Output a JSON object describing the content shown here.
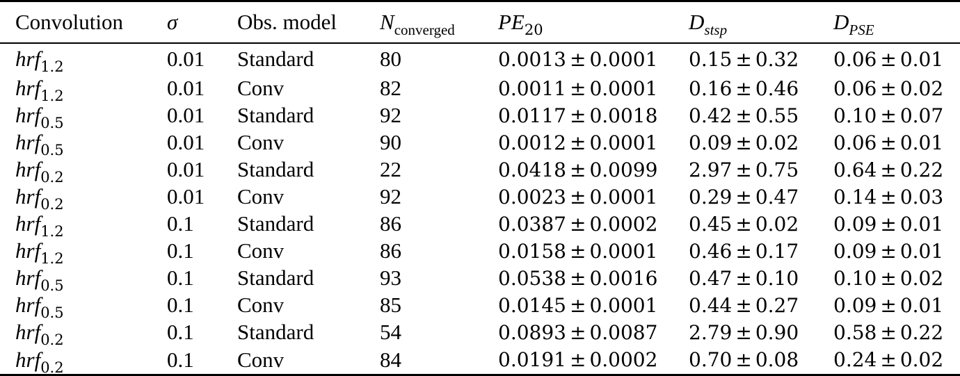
{
  "table": {
    "headers": {
      "convolution": "Convolution",
      "sigma": "σ",
      "obs_model": "Obs. model",
      "n_converged_base": "N",
      "n_converged_sub": "converged",
      "pe_base": "PE",
      "pe_sub": "20",
      "dstsp_base": "D",
      "dstsp_sub": "stsp",
      "dpse_base": "D",
      "dpse_sub": "PSE"
    },
    "pm_symbol": "±",
    "rows": [
      {
        "conv_base": "hrf",
        "conv_sub": "1.2",
        "sigma": "0.01",
        "model": "Standard",
        "n": "80",
        "pe_mean": "0.0013",
        "pe_sd": "0.0001",
        "dstsp_mean": "0.15",
        "dstsp_sd": "0.32",
        "dpse_mean": "0.06",
        "dpse_sd": "0.01"
      },
      {
        "conv_base": "hrf",
        "conv_sub": "1.2",
        "sigma": "0.01",
        "model": "Conv",
        "n": "82",
        "pe_mean": "0.0011",
        "pe_sd": "0.0001",
        "dstsp_mean": "0.16",
        "dstsp_sd": "0.46",
        "dpse_mean": "0.06",
        "dpse_sd": "0.02"
      },
      {
        "conv_base": "hrf",
        "conv_sub": "0.5",
        "sigma": "0.01",
        "model": "Standard",
        "n": "92",
        "pe_mean": "0.0117",
        "pe_sd": "0.0018",
        "dstsp_mean": "0.42",
        "dstsp_sd": "0.55",
        "dpse_mean": "0.10",
        "dpse_sd": "0.07"
      },
      {
        "conv_base": "hrf",
        "conv_sub": "0.5",
        "sigma": "0.01",
        "model": "Conv",
        "n": "90",
        "pe_mean": "0.0012",
        "pe_sd": "0.0001",
        "dstsp_mean": "0.09",
        "dstsp_sd": "0.02",
        "dpse_mean": "0.06",
        "dpse_sd": "0.01"
      },
      {
        "conv_base": "hrf",
        "conv_sub": "0.2",
        "sigma": "0.01",
        "model": "Standard",
        "n": "22",
        "pe_mean": "0.0418",
        "pe_sd": "0.0099",
        "dstsp_mean": "2.97",
        "dstsp_sd": "0.75",
        "dpse_mean": "0.64",
        "dpse_sd": "0.22"
      },
      {
        "conv_base": "hrf",
        "conv_sub": "0.2",
        "sigma": "0.01",
        "model": "Conv",
        "n": "92",
        "pe_mean": "0.0023",
        "pe_sd": "0.0001",
        "dstsp_mean": "0.29",
        "dstsp_sd": "0.47",
        "dpse_mean": "0.14",
        "dpse_sd": "0.03"
      },
      {
        "conv_base": "hrf",
        "conv_sub": "1.2",
        "sigma": "0.1",
        "model": "Standard",
        "n": "86",
        "pe_mean": "0.0387",
        "pe_sd": "0.0002",
        "dstsp_mean": "0.45",
        "dstsp_sd": "0.02",
        "dpse_mean": "0.09",
        "dpse_sd": "0.01"
      },
      {
        "conv_base": "hrf",
        "conv_sub": "1.2",
        "sigma": "0.1",
        "model": "Conv",
        "n": "86",
        "pe_mean": "0.0158",
        "pe_sd": "0.0001",
        "dstsp_mean": "0.46",
        "dstsp_sd": "0.17",
        "dpse_mean": "0.09",
        "dpse_sd": "0.01"
      },
      {
        "conv_base": "hrf",
        "conv_sub": "0.5",
        "sigma": "0.1",
        "model": "Standard",
        "n": "93",
        "pe_mean": "0.0538",
        "pe_sd": "0.0016",
        "dstsp_mean": "0.47",
        "dstsp_sd": "0.10",
        "dpse_mean": "0.10",
        "dpse_sd": "0.02"
      },
      {
        "conv_base": "hrf",
        "conv_sub": "0.5",
        "sigma": "0.1",
        "model": "Conv",
        "n": "85",
        "pe_mean": "0.0145",
        "pe_sd": "0.0001",
        "dstsp_mean": "0.44",
        "dstsp_sd": "0.27",
        "dpse_mean": "0.09",
        "dpse_sd": "0.01"
      },
      {
        "conv_base": "hrf",
        "conv_sub": "0.2",
        "sigma": "0.1",
        "model": "Standard",
        "n": "54",
        "pe_mean": "0.0893",
        "pe_sd": "0.0087",
        "dstsp_mean": "2.79",
        "dstsp_sd": "0.90",
        "dpse_mean": "0.58",
        "dpse_sd": "0.22"
      },
      {
        "conv_base": "hrf",
        "conv_sub": "0.2",
        "sigma": "0.1",
        "model": "Conv",
        "n": "84",
        "pe_mean": "0.0191",
        "pe_sd": "0.0002",
        "dstsp_mean": "0.70",
        "dstsp_sd": "0.08",
        "dpse_mean": "0.24",
        "dpse_sd": "0.02"
      }
    ]
  }
}
